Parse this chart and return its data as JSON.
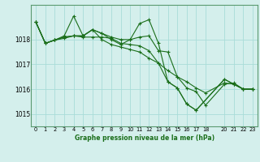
{
  "title": "Graphe pression niveau de la mer (hPa)",
  "bg_color": "#d4efec",
  "grid_color": "#a8ddd8",
  "line_color": "#1a6e1a",
  "spine_color": "#5a9a70",
  "xlim": [
    -0.5,
    23.5
  ],
  "ylim": [
    1014.5,
    1019.4
  ],
  "yticks": [
    1015,
    1016,
    1017,
    1018
  ],
  "xticks": [
    0,
    1,
    2,
    3,
    4,
    5,
    6,
    7,
    8,
    9,
    10,
    11,
    12,
    13,
    14,
    15,
    16,
    17,
    18,
    20,
    21,
    22,
    23
  ],
  "series": [
    [
      1018.7,
      1017.85,
      1017.98,
      1018.05,
      1018.15,
      1018.1,
      1018.1,
      1018.1,
      1018.05,
      1017.85,
      1017.8,
      1017.75,
      1017.55,
      1017.05,
      1016.75,
      1016.5,
      1016.3,
      1016.05,
      1015.85,
      null,
      1016.25,
      1016.2,
      1016.0,
      1016.0
    ],
    [
      1018.7,
      1017.85,
      1017.98,
      1018.1,
      1018.15,
      1018.15,
      1018.4,
      1018.25,
      1018.1,
      1018.0,
      1018.0,
      1018.1,
      1018.15,
      1017.55,
      1017.5,
      1016.5,
      1016.05,
      1015.9,
      1015.35,
      null,
      1016.2,
      1016.25,
      1016.0,
      1016.0
    ],
    [
      1018.7,
      1017.85,
      1017.98,
      1018.1,
      1018.15,
      1018.15,
      1018.4,
      1018.25,
      1018.0,
      1017.8,
      1018.0,
      1018.65,
      1018.8,
      1017.85,
      1016.3,
      1016.05,
      1015.4,
      1015.15,
      null,
      null,
      1016.4,
      1016.2,
      1016.0,
      1016.0
    ],
    [
      1018.7,
      1017.85,
      1017.98,
      1018.15,
      1018.95,
      1018.15,
      1018.4,
      1018.0,
      1017.8,
      1017.7,
      1017.6,
      1017.5,
      1017.25,
      1017.05,
      1016.3,
      1016.05,
      1015.4,
      1015.15,
      null,
      null,
      1016.4,
      1016.2,
      1016.0,
      1016.0
    ]
  ],
  "x_positions": [
    0,
    1,
    2,
    3,
    4,
    5,
    6,
    7,
    8,
    9,
    10,
    11,
    12,
    13,
    14,
    15,
    16,
    17,
    18,
    19,
    20,
    21,
    22,
    23
  ]
}
